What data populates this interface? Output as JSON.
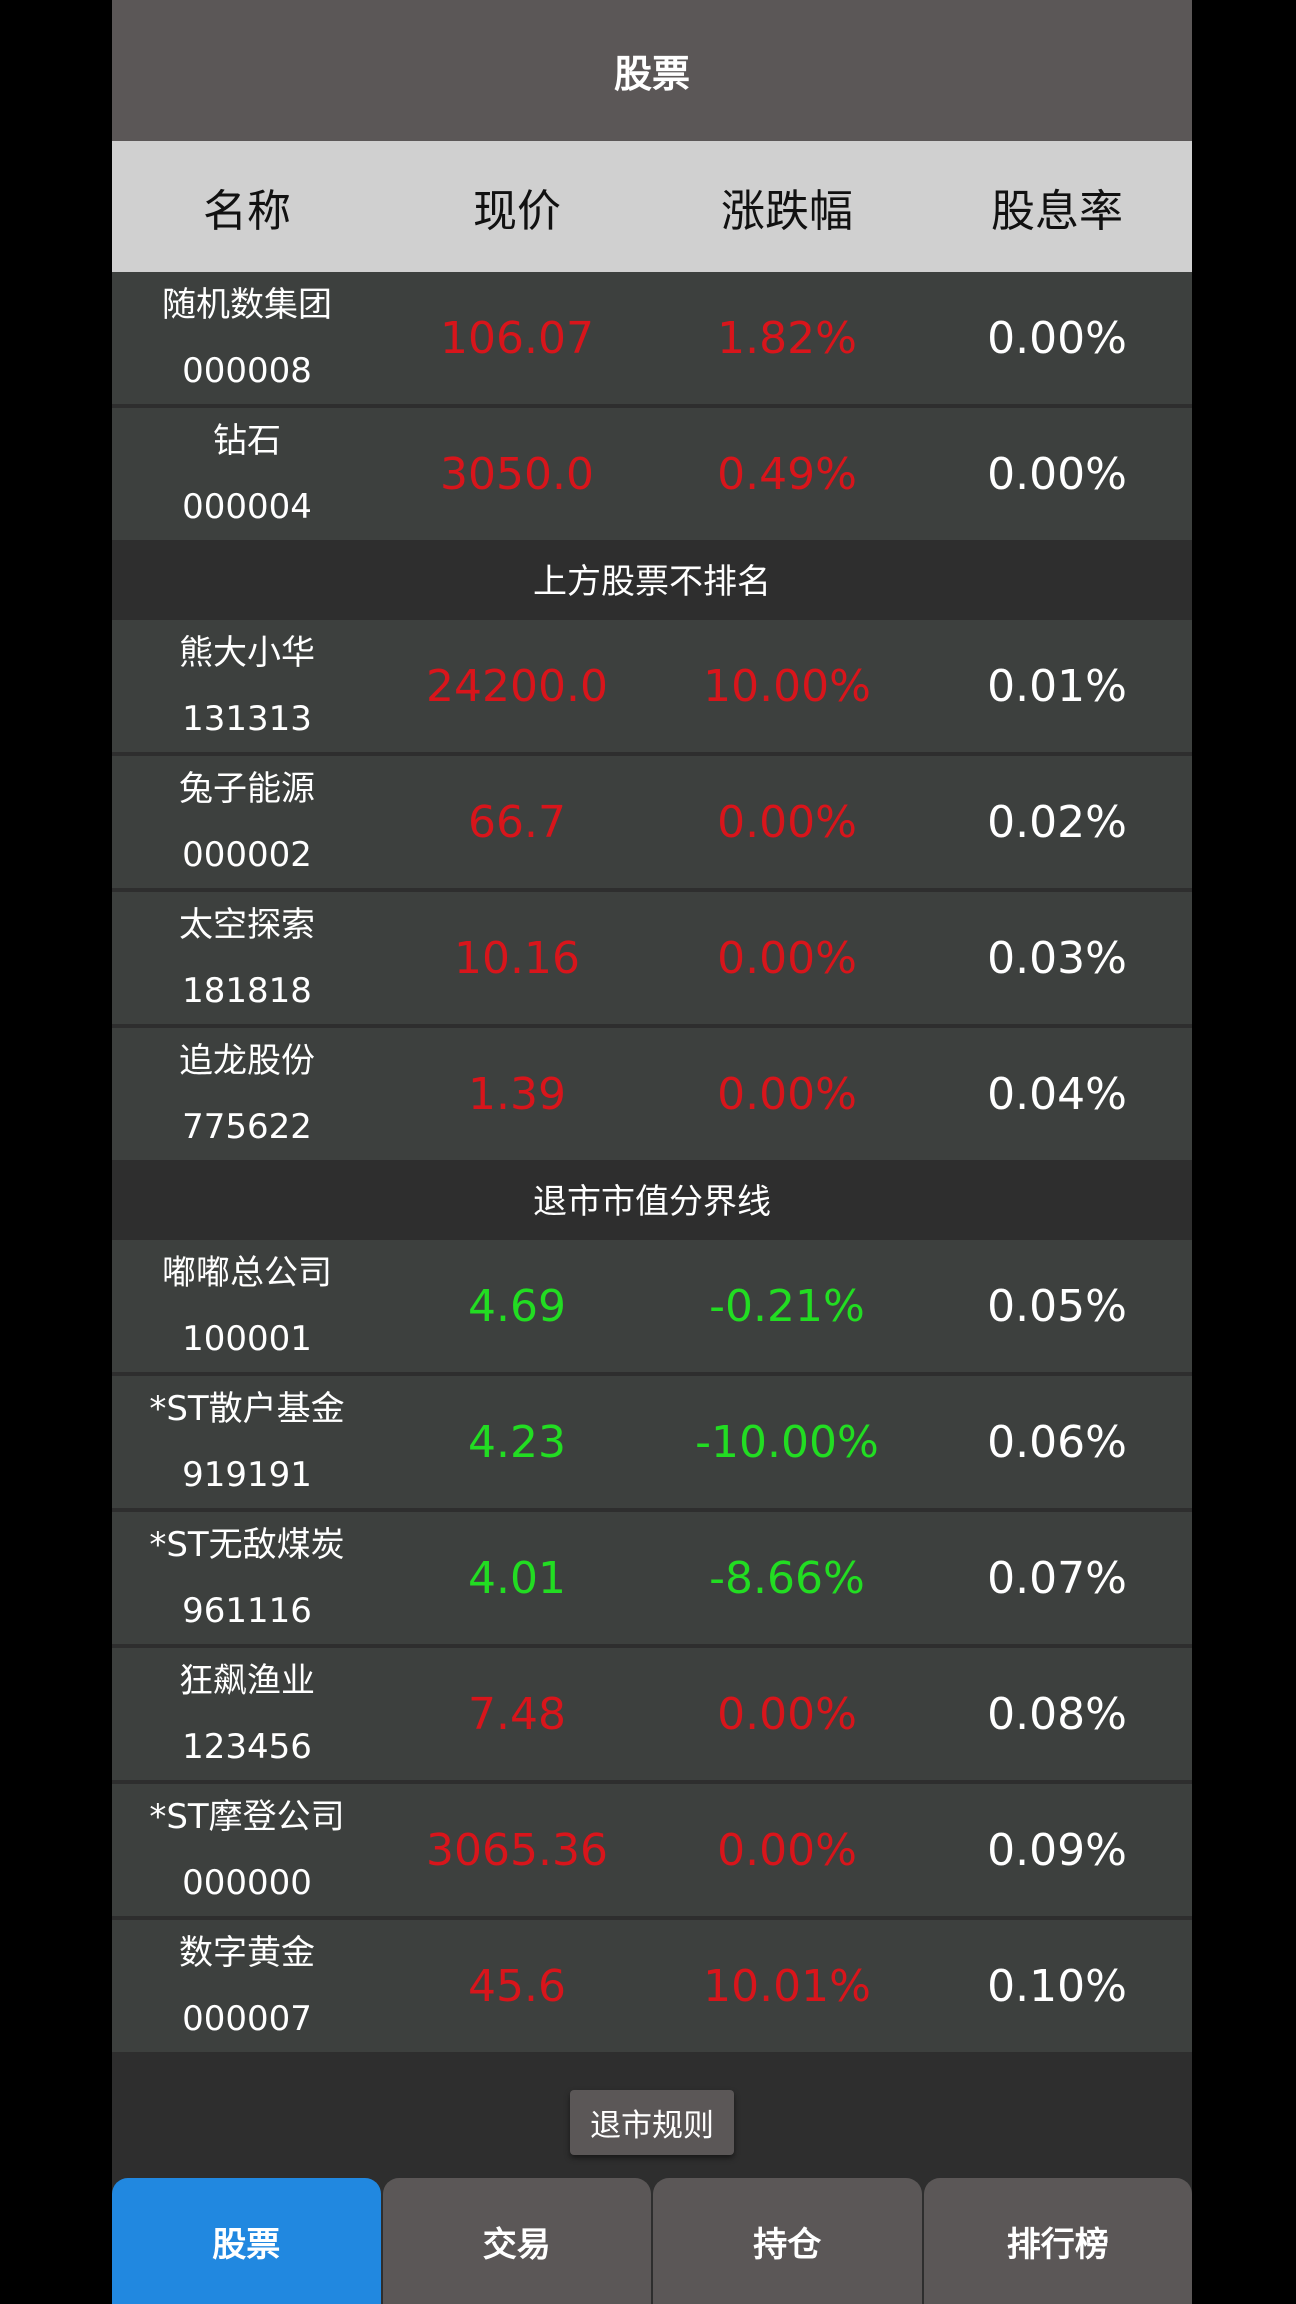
{
  "title": "股票",
  "columns": [
    "名称",
    "现价",
    "涨跌幅",
    "股息率"
  ],
  "colors": {
    "up": "#d8151b",
    "down": "#22dd22",
    "active_tab": "#2188e0"
  },
  "groups": [
    {
      "divider": null,
      "rows": [
        {
          "name": "随机数集团",
          "code": "000008",
          "price": "106.07",
          "change": "1.82%",
          "dividend": "0.00%",
          "trend": "up"
        },
        {
          "name": "钻石",
          "code": "000004",
          "price": "3050.0",
          "change": "0.49%",
          "dividend": "0.00%",
          "trend": "up"
        }
      ]
    },
    {
      "divider": "上方股票不排名",
      "rows": [
        {
          "name": "熊大小华",
          "code": "131313",
          "price": "24200.0",
          "change": "10.00%",
          "dividend": "0.01%",
          "trend": "up"
        },
        {
          "name": "兔子能源",
          "code": "000002",
          "price": "66.7",
          "change": "0.00%",
          "dividend": "0.02%",
          "trend": "up"
        },
        {
          "name": "太空探索",
          "code": "181818",
          "price": "10.16",
          "change": "0.00%",
          "dividend": "0.03%",
          "trend": "up"
        },
        {
          "name": "追龙股份",
          "code": "775622",
          "price": "1.39",
          "change": "0.00%",
          "dividend": "0.04%",
          "trend": "up"
        }
      ]
    },
    {
      "divider": "退市市值分界线",
      "rows": [
        {
          "name": "嘟嘟总公司",
          "code": "100001",
          "price": "4.69",
          "change": "-0.21%",
          "dividend": "0.05%",
          "trend": "down"
        },
        {
          "name": "*ST散户基金",
          "code": "919191",
          "price": "4.23",
          "change": "-10.00%",
          "dividend": "0.06%",
          "trend": "down"
        },
        {
          "name": "*ST无敌煤炭",
          "code": "961116",
          "price": "4.01",
          "change": "-8.66%",
          "dividend": "0.07%",
          "trend": "down"
        },
        {
          "name": "狂飙渔业",
          "code": "123456",
          "price": "7.48",
          "change": "0.00%",
          "dividend": "0.08%",
          "trend": "up"
        },
        {
          "name": "*ST摩登公司",
          "code": "000000",
          "price": "3065.36",
          "change": "0.00%",
          "dividend": "0.09%",
          "trend": "up"
        },
        {
          "name": "数字黄金",
          "code": "000007",
          "price": "45.6",
          "change": "10.01%",
          "dividend": "0.10%",
          "trend": "up"
        }
      ]
    }
  ],
  "rules_button": "退市规则",
  "tabs": [
    {
      "label": "股票",
      "active": true
    },
    {
      "label": "交易",
      "active": false
    },
    {
      "label": "持仓",
      "active": false
    },
    {
      "label": "排行榜",
      "active": false
    }
  ]
}
